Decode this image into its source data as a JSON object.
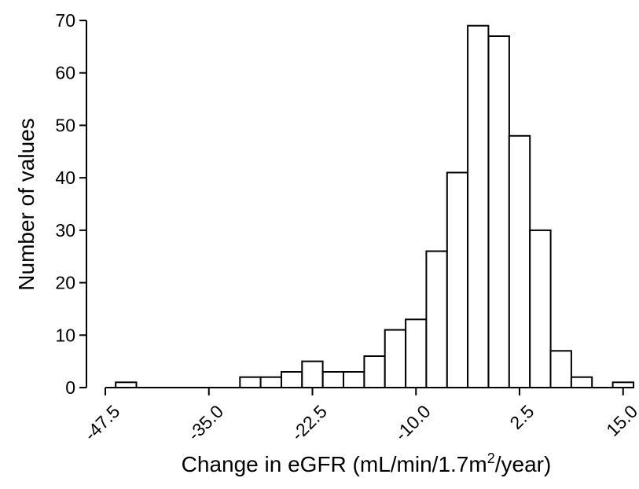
{
  "chart_data": {
    "type": "bar",
    "title": "",
    "xlabel": {
      "prefix": "Change in eGFR (mL/min/1.7m",
      "superscript": "2",
      "suffix": "/year)"
    },
    "ylabel": "Number of values",
    "ylim": [
      0,
      70
    ],
    "yticks": [
      "0",
      "10",
      "20",
      "30",
      "40",
      "50",
      "60",
      "70"
    ],
    "xticks": [
      "-47.5",
      "-35.0",
      "-22.5",
      "-10.0",
      "2.5",
      "15.0"
    ],
    "bin_width": 2.5,
    "bins": [
      {
        "center": -47.5,
        "count": 0
      },
      {
        "center": -45.0,
        "count": 1
      },
      {
        "center": -42.5,
        "count": 0
      },
      {
        "center": -40.0,
        "count": 0
      },
      {
        "center": -37.5,
        "count": 0
      },
      {
        "center": -35.0,
        "count": 0
      },
      {
        "center": -32.5,
        "count": 0
      },
      {
        "center": -30.0,
        "count": 2
      },
      {
        "center": -27.5,
        "count": 2
      },
      {
        "center": -25.0,
        "count": 3
      },
      {
        "center": -22.5,
        "count": 5
      },
      {
        "center": -20.0,
        "count": 3
      },
      {
        "center": -17.5,
        "count": 3
      },
      {
        "center": -15.0,
        "count": 6
      },
      {
        "center": -12.5,
        "count": 11
      },
      {
        "center": -10.0,
        "count": 13
      },
      {
        "center": -7.5,
        "count": 26
      },
      {
        "center": -5.0,
        "count": 41
      },
      {
        "center": -2.5,
        "count": 69
      },
      {
        "center": 0.0,
        "count": 67
      },
      {
        "center": 2.5,
        "count": 48
      },
      {
        "center": 5.0,
        "count": 30
      },
      {
        "center": 7.5,
        "count": 7
      },
      {
        "center": 10.0,
        "count": 2
      },
      {
        "center": 12.5,
        "count": 0
      },
      {
        "center": 15.0,
        "count": 1
      }
    ],
    "bar_fill": "#ffffff",
    "bar_stroke": "#000000",
    "grid": false,
    "legend": "none"
  }
}
